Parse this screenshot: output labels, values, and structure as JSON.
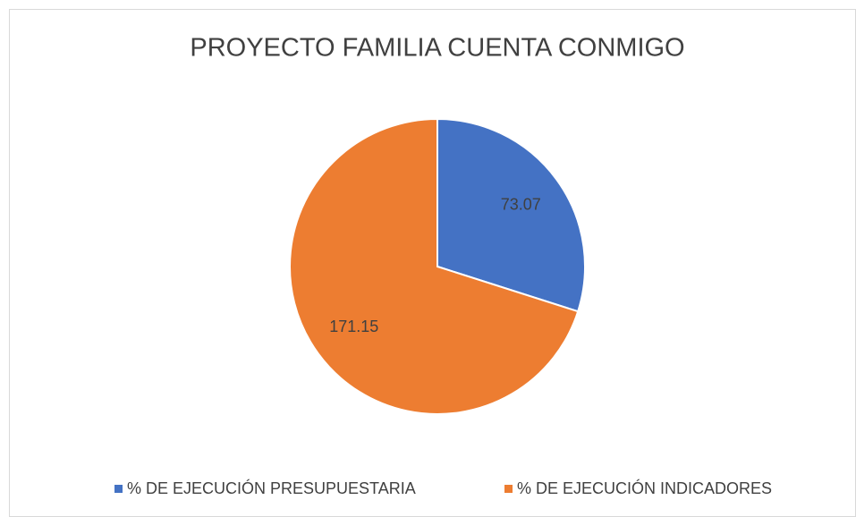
{
  "chart_data": {
    "type": "pie",
    "title": "PROYECTO FAMILIA CUENTA CONMIGO",
    "categories": [
      "% DE EJECUCIÓN PRESUPUESTARIA",
      "% DE EJECUCIÓN INDICADORES"
    ],
    "values": [
      73.07,
      171.15
    ],
    "colors": [
      "#4472c4",
      "#ed7d31"
    ]
  }
}
